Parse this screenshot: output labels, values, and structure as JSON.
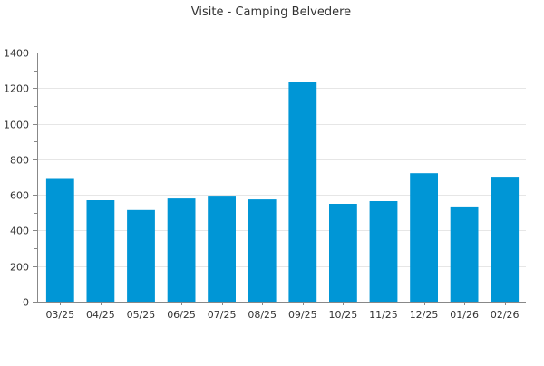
{
  "chart_data": {
    "type": "bar",
    "title": "Visite - Camping Belvedere",
    "xlabel": "",
    "ylabel": "",
    "categories": [
      "03/25",
      "04/25",
      "05/25",
      "06/25",
      "07/25",
      "08/25",
      "09/25",
      "10/25",
      "11/25",
      "12/25",
      "01/26",
      "02/26"
    ],
    "values": [
      690,
      570,
      515,
      580,
      595,
      575,
      1235,
      550,
      565,
      722,
      535,
      702
    ],
    "ylim": [
      0,
      1400
    ],
    "yticks": [
      0,
      200,
      400,
      600,
      800,
      1000,
      1200,
      1400
    ],
    "ytick_labels": [
      "0",
      "200",
      "400",
      "600",
      "800",
      "1000",
      "1200",
      "1400"
    ],
    "grid": true,
    "legend": "none",
    "colors": {
      "bar": "#0096d6",
      "grid": "#e6e6e6",
      "axis": "#888888",
      "text": "#333333"
    }
  }
}
